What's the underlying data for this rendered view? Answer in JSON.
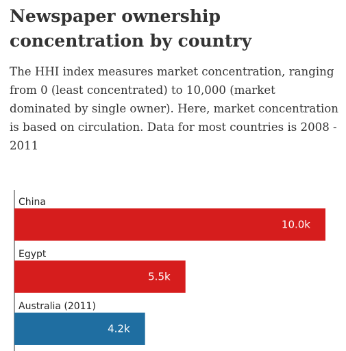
{
  "title": "Newspaper ownership concentration by country",
  "subtitle": "The HHI index measures market concentration, ranging from 0 (least concentrated) to 10,000 (market dominated by single owner). Here, market concentration is based on circulation. Data for most countries is 2008 - 2011",
  "chart_data": {
    "type": "bar",
    "orientation": "horizontal",
    "title": "Newspaper ownership concentration by country",
    "subtitle": "The HHI index measures market concentration, ranging from 0 (least concentrated) to 10,000 (market dominated by single owner). Here, market concentration is based on circulation. Data for most countries is 2008 - 2011",
    "categories": [
      "China",
      "Egypt",
      "Australia (2011)"
    ],
    "values": [
      10000,
      5500,
      4200
    ],
    "value_labels": [
      "10.0k",
      "5.5k",
      "4.2k"
    ],
    "bar_colors": [
      "#d61d1d",
      "#d61d1d",
      "#1f6ea1"
    ],
    "xlim": [
      0,
      10000
    ],
    "grid": false,
    "legend": "none"
  }
}
